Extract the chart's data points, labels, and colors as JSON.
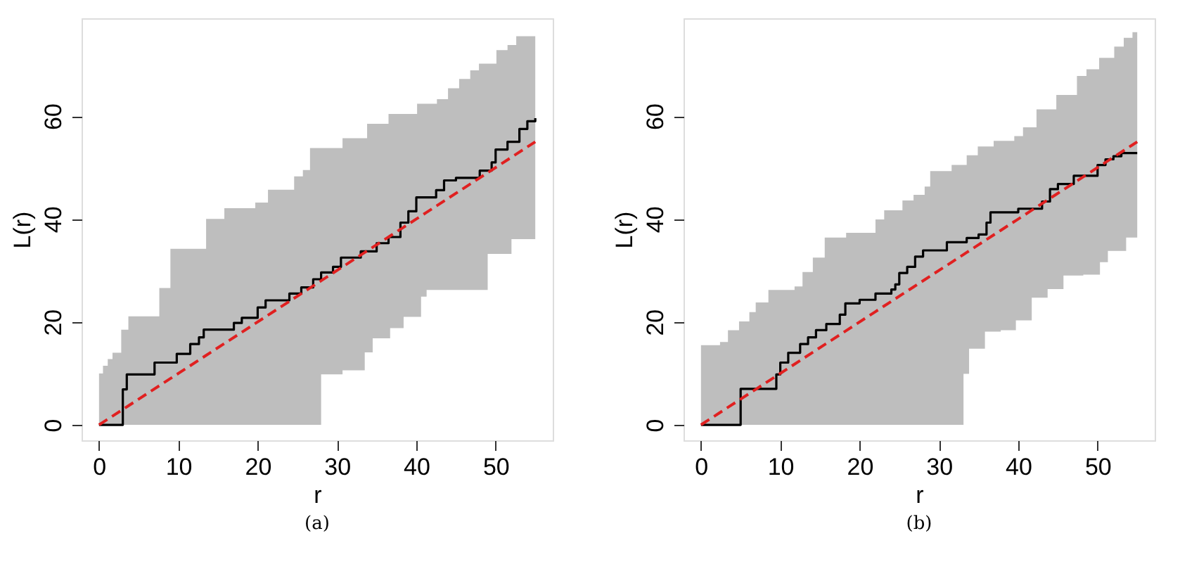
{
  "chart_data": [
    {
      "type": "line",
      "title": "(a)",
      "xlabel": "r",
      "ylabel": "L(r)",
      "xlim": [
        -2.2,
        57.2
      ],
      "ylim": [
        -3,
        79
      ],
      "xticks": [
        0,
        10,
        20,
        30,
        40,
        50
      ],
      "yticks": [
        0,
        20,
        40,
        60
      ],
      "series": [
        {
          "type": "step",
          "color": "#000000",
          "x": [
            0,
            3.0,
            3.5,
            7.0,
            9.8,
            11.5,
            12.6,
            13.2,
            17.0,
            18.0,
            20.0,
            21.0,
            24.0,
            25.5,
            27.0,
            28.0,
            29.5,
            30.5,
            33.0,
            35.0,
            36.5,
            38.0,
            39.0,
            40.0,
            42.5,
            43.5,
            45.0,
            48.0,
            49.5,
            50.0,
            51.5,
            53.0,
            54.0,
            55
          ],
          "values": [
            0,
            6.9,
            9.8,
            12.1,
            13.8,
            15.7,
            17,
            18.5,
            19.8,
            20.8,
            22.8,
            24.2,
            25.5,
            26.7,
            28.3,
            29.6,
            30.7,
            32.5,
            33.7,
            35.3,
            36.5,
            39.3,
            41.5,
            44.2,
            45.6,
            47.5,
            48.0,
            49.4,
            51,
            53.5,
            55,
            57.5,
            59,
            59.6
          ]
        },
        {
          "type": "line",
          "color": "#e02020",
          "line_style": "dashed",
          "x": [
            0,
            0.5,
            1.1,
            1.7,
            2.8,
            3.7,
            7.6,
            9.0,
            13.0,
            13.5,
            15.8,
            19.7,
            21.3,
            24.6,
            25.7,
            26.6,
            28.0,
            30.7,
            33.5,
            33.8,
            34.5,
            36.5,
            36.7,
            38.4,
            40.1,
            40.6,
            41.3,
            42.6,
            44.0,
            45.4,
            46.8,
            47.9,
            49.0,
            50.1,
            51.5,
            52.0,
            52.6,
            55
          ],
          "values": [
            0,
            0.5,
            1.1,
            1.7,
            2.8,
            3.7,
            7.6,
            9.0,
            13.0,
            13.5,
            15.8,
            19.7,
            21.3,
            24.6,
            25.7,
            26.6,
            28.0,
            30.7,
            33.5,
            33.8,
            34.5,
            36.5,
            36.7,
            38.4,
            40.1,
            40.6,
            41.3,
            42.6,
            44.0,
            45.4,
            46.8,
            47.9,
            49.0,
            50.1,
            51.5,
            52.0,
            52.6,
            55
          ],
          "upper": [
            10,
            11.5,
            12.8,
            14,
            18.5,
            21.1,
            26.6,
            34.2,
            34.2,
            40,
            42.1,
            43.2,
            45.7,
            48.3,
            49.5,
            53.8,
            53.8,
            55.7,
            55.7,
            58.5,
            58.5,
            60.4,
            60.4,
            60.4,
            62.4,
            62.4,
            62.4,
            63.3,
            65.4,
            67.2,
            68.9,
            70.2,
            70.2,
            72.8,
            73.8,
            73.8,
            75.5,
            75.5
          ],
          "lower": [
            0,
            0,
            0,
            0,
            0,
            0,
            0,
            0,
            0,
            0,
            0,
            0,
            0,
            0,
            0,
            0,
            9.8,
            10.6,
            14.1,
            14.1,
            16.8,
            16.8,
            18.8,
            21,
            21,
            24.9,
            26.2,
            26.2,
            26.2,
            26.2,
            26.2,
            26.2,
            33.2,
            33.2,
            33.2,
            36.1,
            36.1,
            36.1
          ]
        }
      ]
    },
    {
      "type": "line",
      "title": "(b)",
      "xlabel": "r",
      "ylabel": "L(r)",
      "xlim": [
        -2.2,
        57.2
      ],
      "ylim": [
        -3,
        79
      ],
      "xticks": [
        0,
        10,
        20,
        30,
        40,
        50
      ],
      "yticks": [
        0,
        20,
        40,
        60
      ],
      "series": [
        {
          "type": "step",
          "color": "#000000",
          "x": [
            0,
            5.0,
            9.5,
            10.0,
            11.0,
            12.5,
            13.5,
            14.5,
            15.8,
            17.5,
            18.2,
            20.0,
            22.0,
            24.0,
            24.5,
            25.0,
            26.0,
            27.0,
            28.0,
            31.0,
            33.5,
            35.0,
            36.0,
            36.5,
            40.0,
            43.0,
            44.0,
            45.0,
            47.0,
            50.0,
            51.0,
            52.0,
            53.0,
            55
          ],
          "values": [
            0,
            7,
            9.8,
            12.1,
            14,
            15.7,
            17,
            18.4,
            19.6,
            21.4,
            23.6,
            24.3,
            25.5,
            26.3,
            27.3,
            29.5,
            30.7,
            32.7,
            33.9,
            35.5,
            36.3,
            37.0,
            39.3,
            41.3,
            42.0,
            43.4,
            45.8,
            46.8,
            48.4,
            50.5,
            51.6,
            52.2,
            52.8,
            52.8
          ]
        },
        {
          "type": "line",
          "color": "#e02020",
          "line_style": "dashed",
          "x": [
            0,
            2.4,
            3.4,
            4.8,
            6.1,
            6.9,
            8.5,
            11.8,
            12.8,
            14.1,
            15.6,
            18.3,
            22.0,
            23.1,
            25.4,
            26.8,
            28.2,
            28.9,
            31.6,
            33.1,
            33.5,
            33.8,
            34.9,
            35.8,
            36.9,
            37.8,
            39.5,
            39.7,
            40.6,
            41.7,
            42.3,
            43.7,
            44.8,
            45.7,
            47.4,
            48.2,
            48.6,
            50.2,
            50.3,
            51.3,
            52.1,
            53.3,
            53.6,
            54.4,
            55
          ],
          "values": [
            0,
            2.4,
            3.4,
            4.8,
            6.1,
            6.9,
            8.5,
            11.8,
            12.8,
            14.1,
            15.6,
            18.3,
            22.0,
            23.1,
            25.4,
            26.8,
            28.2,
            28.9,
            31.6,
            33.1,
            33.5,
            33.8,
            34.9,
            35.8,
            36.9,
            37.8,
            39.5,
            39.7,
            40.6,
            41.7,
            42.3,
            43.7,
            44.8,
            45.7,
            47.4,
            48.2,
            48.6,
            50.2,
            50.3,
            51.3,
            52.1,
            53.3,
            53.6,
            54.4,
            55
          ],
          "upper": [
            15.5,
            16.1,
            18.4,
            20.1,
            21.9,
            23.8,
            26.2,
            26.9,
            29.7,
            32.5,
            36.4,
            37.3,
            39.9,
            41.7,
            43.6,
            44.7,
            46.3,
            49.3,
            50.5,
            50.5,
            52.4,
            52.4,
            54.1,
            54.1,
            55.2,
            55.2,
            56.1,
            56.1,
            57.8,
            57.8,
            61.3,
            61.3,
            64.1,
            64.1,
            67.8,
            67.8,
            69.1,
            71.3,
            71.3,
            71.3,
            73.5,
            75.2,
            75.2,
            76.3,
            76.3
          ],
          "lower": [
            0,
            0,
            0,
            0,
            0,
            0,
            0,
            0,
            0,
            0,
            0,
            0,
            0,
            0,
            0,
            0,
            0,
            0,
            0,
            9.9,
            9.9,
            14.8,
            14.8,
            18.1,
            18.1,
            18.4,
            18.4,
            20.3,
            20.3,
            24.7,
            24.7,
            26.4,
            26.4,
            29.0,
            29.0,
            29.2,
            29.2,
            29.2,
            31.6,
            33.8,
            33.8,
            33.8,
            36.4,
            36.4,
            36.4
          ]
        }
      ]
    }
  ]
}
